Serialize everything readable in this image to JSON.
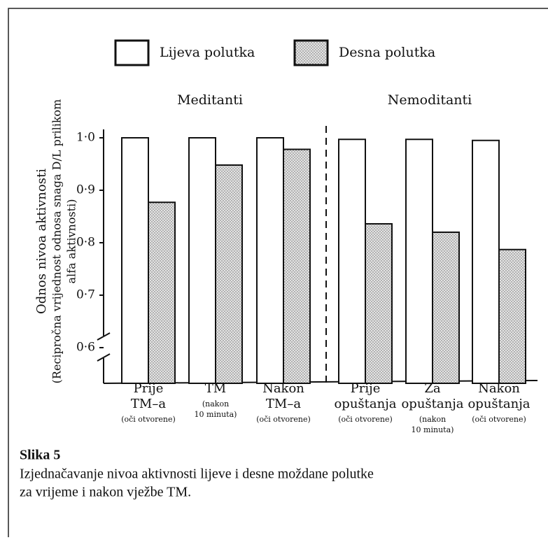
{
  "chart_data": {
    "type": "bar",
    "y_label": [
      "Odnos nivoa aktivnosti",
      "(Recipročna vrijednost odnosa snaga D/L prilikom",
      "alfa aktivnosti)"
    ],
    "annotations": [
      "Meditanti",
      "Nemoditanti"
    ],
    "categories": [
      [
        "Prije",
        "TM–a",
        "(oči otvorene)"
      ],
      [
        "TM",
        "(nakon",
        "10 minuta)"
      ],
      [
        "Nakon",
        "TM–a",
        "(oči otvorene)"
      ],
      [
        "Prije",
        "opuštanja",
        "(oči otvorene)"
      ],
      [
        "Za",
        "opuštanja",
        "(nakon",
        "10 minuta)"
      ],
      [
        "Nakon",
        "opuštanja",
        "(oči otvorene)"
      ]
    ],
    "series": [
      {
        "name": "Lijeva polutka",
        "color": "#ffffff",
        "values": [
          1.0,
          1.0,
          1.0,
          0.997,
          0.997,
          0.995
        ]
      },
      {
        "name": "Desna polutka",
        "color": "#d8d8d8",
        "values": [
          0.877,
          0.948,
          0.978,
          0.836,
          0.82,
          0.787
        ]
      }
    ],
    "ylim": [
      0.532,
      1.0
    ],
    "yticks": [
      {
        "value": 0.6,
        "label": "0·6"
      },
      {
        "value": 0.7,
        "label": "0·7"
      },
      {
        "value": 0.8,
        "label": "0·8"
      },
      {
        "value": 0.9,
        "label": "0·9"
      },
      {
        "value": 1.0,
        "label": "1·0"
      }
    ],
    "grid": false,
    "caption": {
      "title": "Slika 5",
      "lines": [
        "Izjednačavanje nivoa aktivnosti lijeve i desne moždane polutke",
        "za vrijeme i nakon vježbe TM."
      ]
    }
  }
}
